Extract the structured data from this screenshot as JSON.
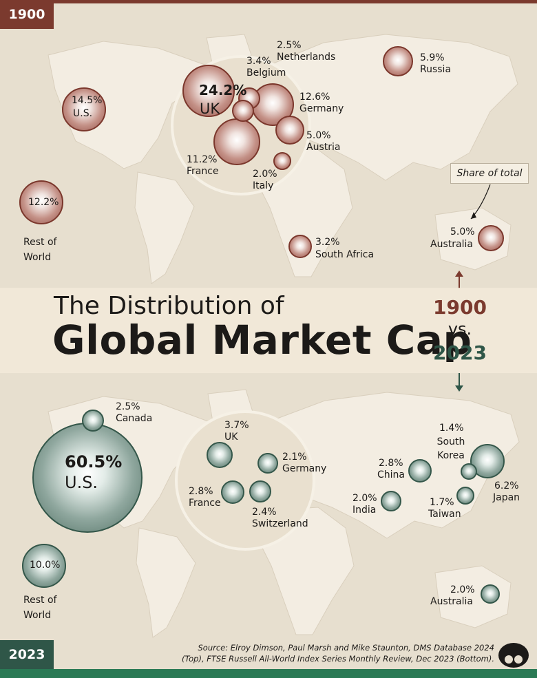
{
  "top_map": {
    "year": "1900",
    "callout": "Share of total",
    "markets": [
      {
        "id": "uk",
        "pct": "24.2%",
        "name": "UK",
        "share": 24.2
      },
      {
        "id": "us",
        "pct": "14.5%",
        "name": "U.S.",
        "share": 14.5
      },
      {
        "id": "germany",
        "pct": "12.6%",
        "name": "Germany",
        "share": 12.6
      },
      {
        "id": "rest",
        "pct": "12.2%",
        "name": "Rest of World",
        "share": 12.2
      },
      {
        "id": "france",
        "pct": "11.2%",
        "name": "France",
        "share": 11.2
      },
      {
        "id": "russia",
        "pct": "5.9%",
        "name": "Russia",
        "share": 5.9
      },
      {
        "id": "austria",
        "pct": "5.0%",
        "name": "Austria",
        "share": 5.0
      },
      {
        "id": "australia",
        "pct": "5.0%",
        "name": "Australia",
        "share": 5.0
      },
      {
        "id": "belgium",
        "pct": "3.4%",
        "name": "Belgium",
        "share": 3.4
      },
      {
        "id": "south-africa",
        "pct": "3.2%",
        "name": "South Africa",
        "share": 3.2
      },
      {
        "id": "netherlands",
        "pct": "2.5%",
        "name": "Netherlands",
        "share": 2.5
      },
      {
        "id": "italy",
        "pct": "2.0%",
        "name": "Italy",
        "share": 2.0
      }
    ]
  },
  "title": {
    "line1": "The Distribution of",
    "line2": "Global Market Cap",
    "year_a": "1900",
    "vs": "vs.",
    "year_b": "2023"
  },
  "bottom_map": {
    "year": "2023",
    "markets": [
      {
        "id": "us",
        "pct": "60.5%",
        "name": "U.S.",
        "share": 60.5
      },
      {
        "id": "rest",
        "pct": "10.0%",
        "name": "Rest of World",
        "share": 10.0
      },
      {
        "id": "japan",
        "pct": "6.2%",
        "name": "Japan",
        "share": 6.2
      },
      {
        "id": "uk",
        "pct": "3.7%",
        "name": "UK",
        "share": 3.7
      },
      {
        "id": "france",
        "pct": "2.8%",
        "name": "France",
        "share": 2.8
      },
      {
        "id": "china",
        "pct": "2.8%",
        "name": "China",
        "share": 2.8
      },
      {
        "id": "canada",
        "pct": "2.5%",
        "name": "Canada",
        "share": 2.5
      },
      {
        "id": "switzerland",
        "pct": "2.4%",
        "name": "Switzerland",
        "share": 2.4
      },
      {
        "id": "germany",
        "pct": "2.1%",
        "name": "Germany",
        "share": 2.1
      },
      {
        "id": "india",
        "pct": "2.0%",
        "name": "India",
        "share": 2.0
      },
      {
        "id": "australia",
        "pct": "2.0%",
        "name": "Australia",
        "share": 2.0
      },
      {
        "id": "taiwan",
        "pct": "1.7%",
        "name": "Taiwan",
        "share": 1.7
      },
      {
        "id": "south-korea",
        "pct": "1.4%",
        "name": "South Korea",
        "share": 1.4
      }
    ]
  },
  "source": {
    "line1": "Source: Elroy Dimson, Paul Marsh and Mike Staunton, DMS Database 2024",
    "line2": "(Top), FTSE Russell All-World Index Series Monthly Review, Dec 2023 (Bottom)."
  },
  "colors": {
    "year_1900": "#7b3a2e",
    "year_2023": "#2f5648",
    "background": "#e7dfcf",
    "land": "#f4eee3"
  }
}
